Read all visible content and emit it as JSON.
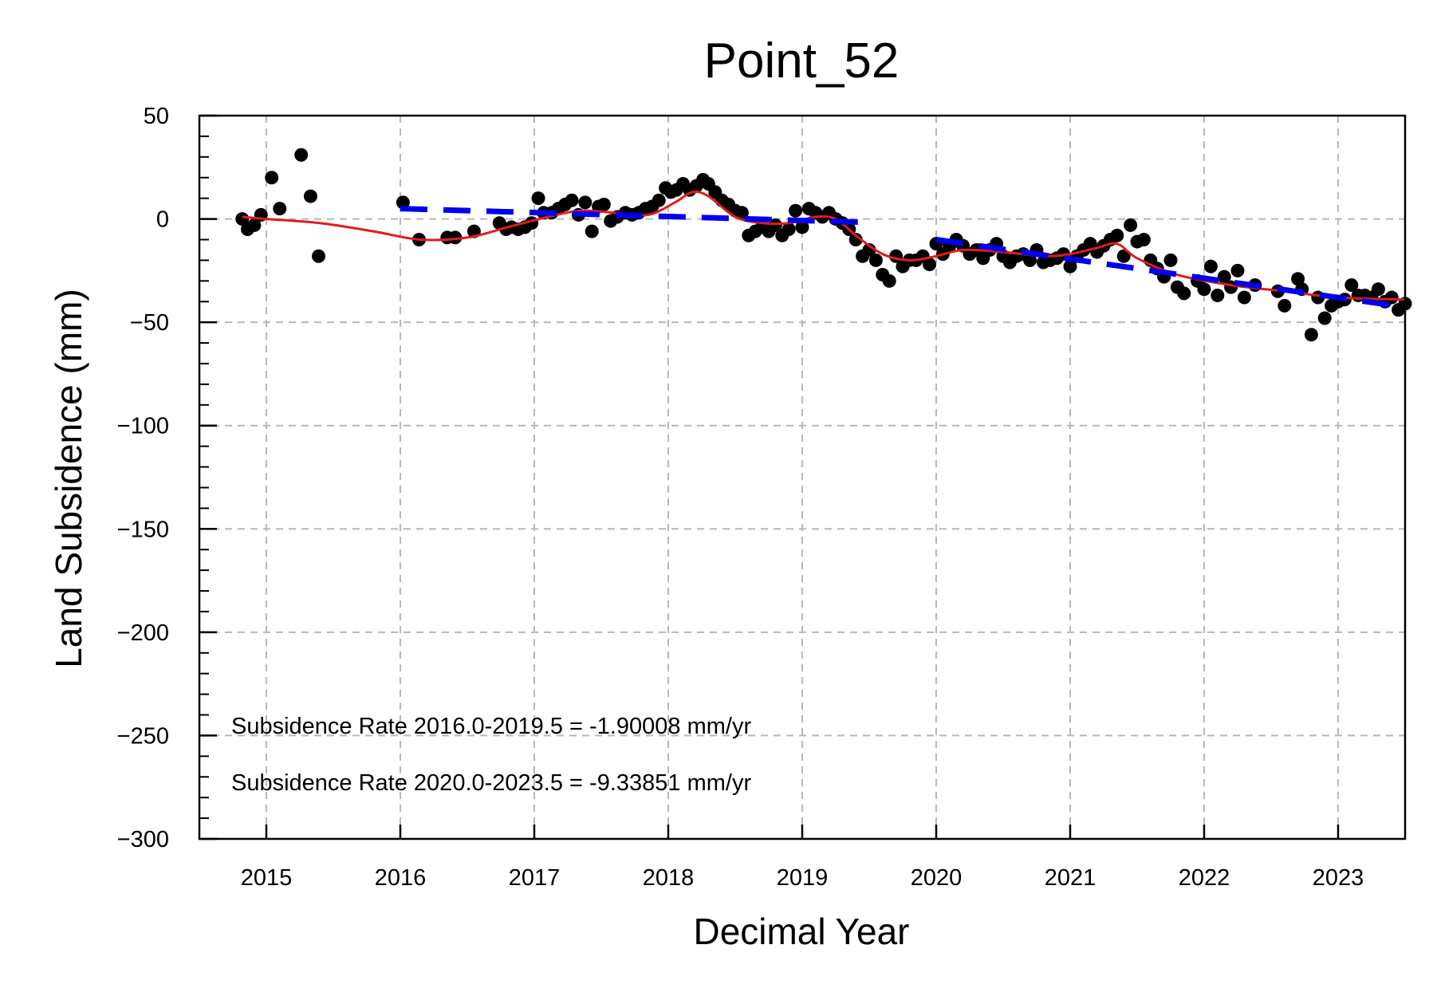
{
  "chart_data": {
    "type": "scatter",
    "title": "Point_52",
    "xlabel": "Decimal Year",
    "ylabel": "Land Subsidence (mm)",
    "xlim": [
      2014.5,
      2023.5
    ],
    "ylim": [
      -300,
      50
    ],
    "x_ticks": [
      2015,
      2016,
      2017,
      2018,
      2019,
      2020,
      2021,
      2022,
      2023
    ],
    "y_ticks": [
      50,
      0,
      -50,
      -100,
      -150,
      -200,
      -250,
      -300
    ],
    "y_minor_step": 10,
    "grid": true,
    "legend": "none",
    "colors": {
      "points": "#000000",
      "smooth_line": "#e41a1c",
      "trend_lines": "#0000ee",
      "grid": "#b8b8b8"
    },
    "annotations": [
      "Subsidence Rate 2016.0-2019.5 = -1.90008 mm/yr",
      "Subsidence Rate 2020.0-2023.5 = -9.33851 mm/yr"
    ],
    "series": [
      {
        "kind": "points",
        "x": [
          2014.82,
          2014.86,
          2014.91,
          2014.96,
          2015.04,
          2015.1,
          2015.26,
          2015.33,
          2015.39,
          2016.02,
          2016.14,
          2016.35,
          2016.41,
          2016.55,
          2016.74,
          2016.79,
          2016.83,
          2016.88,
          2016.93,
          2016.98,
          2017.03,
          2017.07,
          2017.13,
          2017.18,
          2017.23,
          2017.28,
          2017.33,
          2017.38,
          2017.43,
          2017.48,
          2017.52,
          2017.57,
          2017.62,
          2017.68,
          2017.73,
          2017.78,
          2017.83,
          2017.88,
          2017.93,
          2017.98,
          2018.02,
          2018.06,
          2018.11,
          2018.16,
          2018.21,
          2018.26,
          2018.3,
          2018.35,
          2018.4,
          2018.45,
          2018.5,
          2018.55,
          2018.6,
          2018.65,
          2018.7,
          2018.75,
          2018.8,
          2018.85,
          2018.9,
          2018.95,
          2019.0,
          2019.05,
          2019.1,
          2019.15,
          2019.2,
          2019.25,
          2019.3,
          2019.35,
          2019.4,
          2019.45,
          2019.5,
          2019.55,
          2019.6,
          2019.65,
          2019.7,
          2019.75,
          2019.8,
          2019.85,
          2019.9,
          2019.95,
          2020.0,
          2020.05,
          2020.1,
          2020.15,
          2020.2,
          2020.25,
          2020.3,
          2020.35,
          2020.4,
          2020.45,
          2020.5,
          2020.55,
          2020.6,
          2020.65,
          2020.7,
          2020.75,
          2020.8,
          2020.85,
          2020.9,
          2020.95,
          2021.0,
          2021.05,
          2021.1,
          2021.15,
          2021.2,
          2021.25,
          2021.3,
          2021.35,
          2021.4,
          2021.45,
          2021.5,
          2021.55,
          2021.6,
          2021.65,
          2021.7,
          2021.75,
          2021.8,
          2021.85,
          2021.95,
          2022.0,
          2022.05,
          2022.1,
          2022.15,
          2022.2,
          2022.25,
          2022.3,
          2022.38,
          2022.55,
          2022.6,
          2022.7,
          2022.73,
          2022.8,
          2022.85,
          2022.9,
          2022.95,
          2023.0,
          2023.05,
          2023.1,
          2023.15,
          2023.2,
          2023.25,
          2023.3,
          2023.35,
          2023.4,
          2023.45,
          2023.5
        ],
        "y": [
          0,
          -5,
          -3,
          2,
          20,
          5,
          31,
          11,
          -18,
          8,
          -10,
          -9,
          -9,
          -6,
          -2,
          -5,
          -4,
          -5,
          -4,
          -2,
          10,
          3,
          3,
          5,
          7,
          9,
          2,
          8,
          -6,
          6,
          7,
          -1,
          1,
          3,
          2,
          3,
          5,
          6,
          9,
          15,
          13,
          14,
          17,
          14,
          16,
          19,
          17,
          13,
          9,
          7,
          4,
          3,
          -8,
          -6,
          -4,
          -6,
          -3,
          -8,
          -5,
          4,
          -4,
          5,
          3,
          1,
          3,
          0,
          -2,
          -5,
          -10,
          -18,
          -15,
          -20,
          -27,
          -30,
          -18,
          -23,
          -20,
          -20,
          -18,
          -22,
          -12,
          -17,
          -13,
          -10,
          -13,
          -17,
          -15,
          -19,
          -15,
          -12,
          -18,
          -21,
          -18,
          -17,
          -20,
          -15,
          -21,
          -20,
          -19,
          -17,
          -23,
          -18,
          -15,
          -12,
          -16,
          -13,
          -10,
          -8,
          -18,
          -3,
          -11,
          -10,
          -20,
          -24,
          -28,
          -20,
          -33,
          -36,
          -30,
          -34,
          -23,
          -37,
          -28,
          -33,
          -25,
          -38,
          -32,
          -35,
          -42,
          -29,
          -34,
          -56,
          -38,
          -48,
          -42,
          -40,
          -39,
          -32,
          -37,
          -37,
          -38,
          -34,
          -40,
          -38,
          -44,
          -41
        ]
      },
      {
        "kind": "smooth_line",
        "x": [
          2014.82,
          2015.0,
          2015.4,
          2015.8,
          2016.15,
          2016.5,
          2016.8,
          2017.1,
          2017.35,
          2017.6,
          2017.85,
          2018.05,
          2018.18,
          2018.3,
          2018.5,
          2018.7,
          2018.9,
          2019.1,
          2019.25,
          2019.4,
          2019.6,
          2019.8,
          2020.0,
          2020.2,
          2020.5,
          2020.8,
          2021.0,
          2021.2,
          2021.35,
          2021.5,
          2021.8,
          2022.2,
          2022.6,
          2023.0,
          2023.5
        ],
        "y": [
          1,
          0,
          -2,
          -6,
          -10,
          -9,
          -4,
          1,
          4,
          3,
          2,
          8,
          13,
          11,
          1,
          -2,
          -2,
          1,
          0,
          -8,
          -17,
          -20,
          -18,
          -15,
          -16,
          -18,
          -17,
          -14,
          -12,
          -19,
          -27,
          -32,
          -35,
          -38,
          -39
        ]
      },
      {
        "kind": "trend_line",
        "period": "2016.0-2019.5",
        "x": [
          2016.0,
          2019.5
        ],
        "y": [
          5,
          -1.7
        ]
      },
      {
        "kind": "trend_line",
        "period": "2020.0-2023.5",
        "x": [
          2020.0,
          2023.5
        ],
        "y": [
          -10,
          -42.7
        ]
      }
    ]
  }
}
